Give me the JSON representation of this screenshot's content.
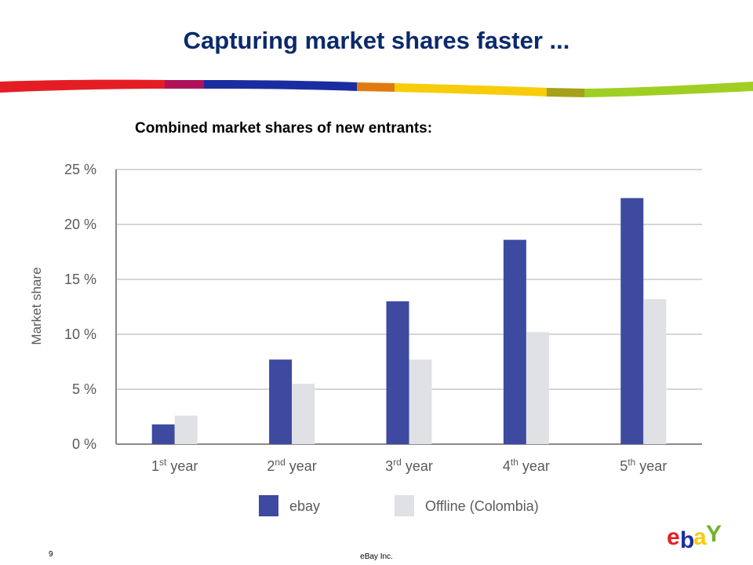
{
  "slide": {
    "title": "Capturing market shares faster ...",
    "subtitle": "Combined market shares of new entrants:",
    "page_number": "9",
    "footer": "eBay Inc."
  },
  "colors": {
    "ebay": "#3d4aa0",
    "offline": "#e0e1e5",
    "title": "#0b2a6b",
    "axis": "#8a8a8a",
    "grid": "#c9c9c9",
    "label": "#5a5a5a"
  },
  "logo": {
    "text": "ebaY",
    "icon": "ebay-logo"
  },
  "chart_data": {
    "type": "bar",
    "categories": [
      {
        "num": "1",
        "sup": "st",
        "word": "year"
      },
      {
        "num": "2",
        "sup": "nd",
        "word": "year"
      },
      {
        "num": "3",
        "sup": "rd",
        "word": "year"
      },
      {
        "num": "4",
        "sup": "th",
        "word": "year"
      },
      {
        "num": "5",
        "sup": "th",
        "word": "year"
      }
    ],
    "series": [
      {
        "name": "ebay",
        "values": [
          1.8,
          7.7,
          13.0,
          18.6,
          22.4
        ]
      },
      {
        "name": "Offline (Colombia)",
        "values": [
          2.6,
          5.5,
          7.7,
          10.2,
          13.2
        ]
      }
    ],
    "ylabel": "Market share",
    "ylim": [
      0,
      25
    ],
    "yticks": [
      0,
      5,
      10,
      15,
      20,
      25
    ],
    "ytick_labels": [
      "0 %",
      "5 %",
      "10 %",
      "15 %",
      "20 %",
      "25 %"
    ],
    "grid": true,
    "legend_position": "bottom"
  }
}
